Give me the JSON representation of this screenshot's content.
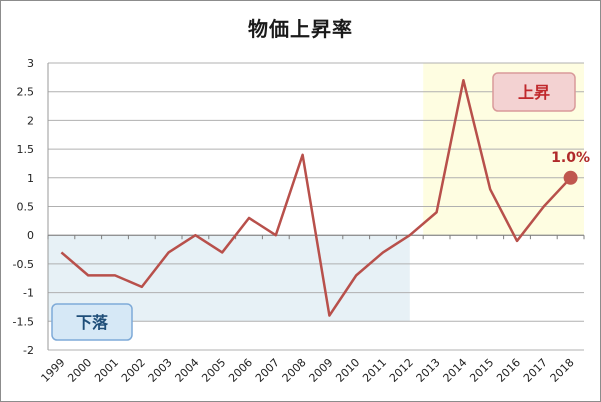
{
  "chart_data": {
    "type": "line",
    "title": "物価上昇率",
    "x": [
      "1999",
      "2000",
      "2001",
      "2002",
      "2003",
      "2004",
      "2005",
      "2006",
      "2007",
      "2008",
      "2009",
      "2010",
      "2011",
      "2012",
      "2013",
      "2014",
      "2015",
      "2016",
      "2017",
      "2018"
    ],
    "series": [
      {
        "values": [
          -0.3,
          -0.7,
          -0.7,
          -0.9,
          -0.3,
          0.0,
          -0.3,
          0.3,
          0.0,
          1.4,
          -1.4,
          -0.7,
          -0.3,
          0.0,
          0.4,
          2.7,
          0.8,
          -0.1,
          0.5,
          1.0
        ]
      }
    ],
    "ylim": [
      -2,
      3
    ],
    "yticks": [
      "3",
      "2.5",
      "2",
      "1.5",
      "1",
      "0.5",
      "0",
      "-0.5",
      "-1",
      "-1.5",
      "-2"
    ],
    "grid": true,
    "colors": {
      "line": "#b8504b",
      "marker": "#c0574f",
      "fall_region": "#e7f1f6",
      "rise_region": "#fefde1"
    },
    "regions": [
      {
        "label": "下落",
        "x_from": "1999",
        "x_to": "2012",
        "y_from": -1.5,
        "y_to": 0
      },
      {
        "label": "上昇",
        "x_from": "2013",
        "x_to": "2018",
        "y_from": 0,
        "y_to": 3
      }
    ],
    "annotation": {
      "text": "1.0%",
      "x": "2018",
      "y": 1.0
    }
  }
}
